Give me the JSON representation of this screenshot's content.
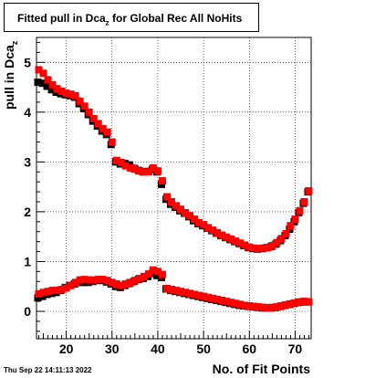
{
  "title": {
    "main": "Fitted pull in Dca",
    "sub": "z",
    "rest": " for Global Rec All NoHits"
  },
  "footer": "Thu Sep 22 14:11:13 2022",
  "chart_data": {
    "type": "scatter",
    "xlabel": "No. of Fit Points",
    "ylabel": {
      "main": "pull in Dca",
      "sub": "z"
    },
    "xlim": [
      13.5,
      73.5
    ],
    "ylim": [
      -0.55,
      5.5
    ],
    "grid": true,
    "x_ticks": [
      20,
      30,
      40,
      50,
      60,
      70
    ],
    "y_ticks": [
      0,
      1,
      2,
      3,
      4,
      5
    ],
    "series": [
      {
        "color": "#000000",
        "x": [
          14,
          15,
          16,
          17,
          18,
          19,
          20,
          21,
          22,
          23,
          24,
          25,
          26,
          27,
          28,
          29,
          30,
          31,
          32,
          33,
          34,
          35,
          36,
          37,
          38,
          39,
          40,
          41,
          42,
          43,
          44,
          45,
          46,
          47,
          48,
          49,
          50,
          51,
          52,
          53,
          54,
          55,
          56,
          57,
          58,
          59,
          60,
          61,
          62,
          63,
          64,
          65,
          66,
          67,
          68,
          69,
          70,
          71,
          72,
          73
        ],
        "y": [
          4.6,
          4.58,
          4.52,
          4.45,
          4.4,
          4.37,
          4.35,
          4.33,
          4.3,
          4.17,
          4.07,
          3.95,
          3.82,
          3.72,
          3.62,
          3.55,
          3.35,
          3.0,
          2.96,
          2.97,
          2.94,
          2.87,
          2.83,
          2.8,
          2.81,
          2.85,
          2.8,
          2.55,
          2.25,
          2.15,
          2.09,
          2.02,
          1.97,
          1.9,
          1.82,
          1.76,
          1.72,
          1.67,
          1.62,
          1.57,
          1.52,
          1.48,
          1.44,
          1.4,
          1.36,
          1.32,
          1.28,
          1.26,
          1.25,
          1.26,
          1.28,
          1.3,
          1.35,
          1.42,
          1.52,
          1.65,
          1.8,
          1.98,
          2.17,
          2.4
        ]
      },
      {
        "color": "#ff0000",
        "x": [
          14,
          15,
          16,
          17,
          18,
          19,
          20,
          21,
          22,
          23,
          24,
          25,
          26,
          27,
          28,
          29,
          30,
          31,
          32,
          33,
          34,
          35,
          36,
          37,
          38,
          39,
          40,
          41,
          42,
          43,
          44,
          45,
          46,
          47,
          48,
          49,
          50,
          51,
          52,
          53,
          54,
          55,
          56,
          57,
          58,
          59,
          60,
          61,
          62,
          63,
          64,
          65,
          66,
          67,
          68,
          69,
          70,
          71,
          72,
          73
        ],
        "y": [
          4.85,
          4.78,
          4.65,
          4.55,
          4.47,
          4.42,
          4.38,
          4.36,
          4.33,
          4.22,
          4.12,
          4.0,
          3.87,
          3.77,
          3.67,
          3.6,
          3.4,
          3.03,
          2.99,
          2.92,
          2.88,
          2.86,
          2.82,
          2.8,
          2.8,
          2.88,
          2.82,
          2.62,
          2.3,
          2.2,
          2.12,
          2.05,
          1.98,
          1.92,
          1.85,
          1.78,
          1.74,
          1.68,
          1.63,
          1.58,
          1.53,
          1.49,
          1.45,
          1.41,
          1.37,
          1.33,
          1.29,
          1.27,
          1.26,
          1.27,
          1.28,
          1.32,
          1.38,
          1.46,
          1.56,
          1.72,
          1.85,
          2.02,
          2.2,
          2.42
        ]
      },
      {
        "color": "#000000",
        "x": [
          14,
          15,
          16,
          17,
          18,
          19,
          20,
          21,
          22,
          23,
          24,
          25,
          26,
          27,
          28,
          29,
          30,
          31,
          32,
          33,
          34,
          35,
          36,
          37,
          38,
          39,
          40,
          41,
          42,
          43,
          44,
          45,
          46,
          47,
          48,
          49,
          50,
          51,
          52,
          53,
          54,
          55,
          56,
          57,
          58,
          59,
          60,
          61,
          62,
          63,
          64,
          65,
          66,
          67,
          68,
          69,
          70,
          71,
          72,
          73
        ],
        "y": [
          0.27,
          0.3,
          0.34,
          0.36,
          0.38,
          0.42,
          0.48,
          0.52,
          0.55,
          0.58,
          0.58,
          0.58,
          0.6,
          0.62,
          0.62,
          0.59,
          0.55,
          0.5,
          0.48,
          0.52,
          0.56,
          0.6,
          0.64,
          0.66,
          0.7,
          0.76,
          0.72,
          0.68,
          0.45,
          0.42,
          0.4,
          0.38,
          0.36,
          0.34,
          0.32,
          0.3,
          0.28,
          0.26,
          0.24,
          0.22,
          0.2,
          0.18,
          0.16,
          0.14,
          0.12,
          0.11,
          0.1,
          0.09,
          0.08,
          0.07,
          0.07,
          0.07,
          0.08,
          0.1,
          0.12,
          0.14,
          0.16,
          0.18,
          0.19,
          0.19
        ]
      },
      {
        "color": "#ff0000",
        "x": [
          14,
          15,
          16,
          17,
          18,
          19,
          20,
          21,
          22,
          23,
          24,
          25,
          26,
          27,
          28,
          29,
          30,
          31,
          32,
          33,
          34,
          35,
          36,
          37,
          38,
          39,
          40,
          41,
          42,
          43,
          44,
          45,
          46,
          47,
          48,
          49,
          50,
          51,
          52,
          53,
          54,
          55,
          56,
          57,
          58,
          59,
          60,
          61,
          62,
          63,
          64,
          65,
          66,
          67,
          68,
          69,
          70,
          71,
          72,
          73
        ],
        "y": [
          0.35,
          0.38,
          0.4,
          0.42,
          0.42,
          0.44,
          0.47,
          0.52,
          0.58,
          0.63,
          0.64,
          0.63,
          0.63,
          0.64,
          0.64,
          0.62,
          0.58,
          0.55,
          0.52,
          0.55,
          0.58,
          0.62,
          0.66,
          0.7,
          0.75,
          0.83,
          0.8,
          0.74,
          0.46,
          0.44,
          0.42,
          0.4,
          0.38,
          0.36,
          0.34,
          0.32,
          0.3,
          0.28,
          0.26,
          0.24,
          0.22,
          0.2,
          0.18,
          0.16,
          0.14,
          0.12,
          0.11,
          0.1,
          0.09,
          0.08,
          0.07,
          0.08,
          0.09,
          0.11,
          0.13,
          0.15,
          0.17,
          0.19,
          0.2,
          0.19
        ]
      }
    ]
  }
}
